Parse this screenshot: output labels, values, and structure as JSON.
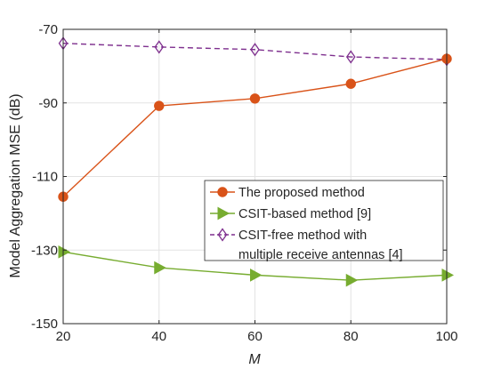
{
  "chart_data": {
    "type": "line",
    "title": "",
    "xlabel": "M",
    "ylabel": "Model Aggregation MSE (dB)",
    "x": [
      20,
      40,
      60,
      80,
      100
    ],
    "xlim": [
      20,
      100
    ],
    "ylim": [
      -150,
      -70
    ],
    "xticks": [
      "20",
      "40",
      "60",
      "80",
      "100"
    ],
    "yticks": [
      "-70",
      "-90",
      "-110",
      "-130",
      "-150"
    ],
    "grid": true,
    "legend_position": "lower-right",
    "series": [
      {
        "name": "The proposed method",
        "values": [
          -115.5,
          -90.8,
          -88.8,
          -84.8,
          -78.0
        ],
        "color": "#D95319",
        "marker": "circle",
        "line": "solid"
      },
      {
        "name": "CSIT-based method [9]",
        "values": [
          -130.5,
          -134.8,
          -136.8,
          -138.2,
          -136.8
        ],
        "color": "#77AC30",
        "marker": "triangle-right",
        "line": "solid"
      },
      {
        "name": "CSIT-free method with multiple receive antennas [4]",
        "legend_lines": [
          "CSIT-free method with",
          "multiple receive antennas [4]"
        ],
        "values": [
          -73.8,
          -74.8,
          -75.5,
          -77.5,
          -78.2
        ],
        "color": "#7E2F8E",
        "marker": "diamond",
        "line": "dashed"
      }
    ]
  }
}
